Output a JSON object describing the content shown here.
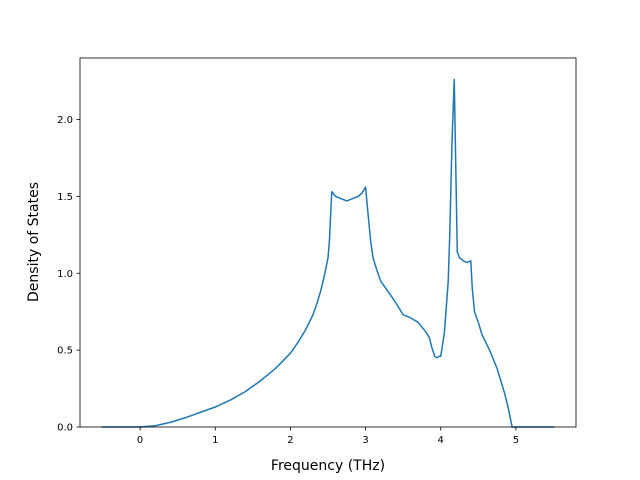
{
  "chart_data": {
    "type": "line",
    "title": "",
    "xlabel": "Frequency (THz)",
    "ylabel": "Density of States",
    "xlim": [
      -0.8,
      5.8
    ],
    "ylim": [
      0,
      2.4
    ],
    "grid": false,
    "legend": "none",
    "line_color": "#1f77b4",
    "xticks": [
      0,
      1,
      2,
      3,
      4,
      5
    ],
    "xtick_labels": [
      "0",
      "1",
      "2",
      "3",
      "4",
      "5"
    ],
    "yticks": [
      0.0,
      0.5,
      1.0,
      1.5,
      2.0
    ],
    "ytick_labels": [
      "0.0",
      "0.5",
      "1.0",
      "1.5",
      "2.0"
    ],
    "series": [
      {
        "x": [
          -0.5,
          0.0,
          0.2,
          0.4,
          0.6,
          0.8,
          1.0,
          1.2,
          1.4,
          1.6,
          1.8,
          2.0,
          2.1,
          2.2,
          2.3,
          2.35,
          2.4,
          2.45,
          2.5,
          2.52,
          2.55,
          2.6,
          2.65,
          2.7,
          2.75,
          2.8,
          2.85,
          2.9,
          2.95,
          3.0,
          3.03,
          3.07,
          3.1,
          3.15,
          3.2,
          3.3,
          3.4,
          3.5,
          3.55,
          3.6,
          3.7,
          3.75,
          3.8,
          3.85,
          3.88,
          3.92,
          3.95,
          3.98,
          4.0,
          4.02,
          4.05,
          4.1,
          4.12,
          4.15,
          4.18,
          4.2,
          4.22,
          4.25,
          4.28,
          4.3,
          4.35,
          4.4,
          4.42,
          4.45,
          4.5,
          4.55,
          4.6,
          4.65,
          4.7,
          4.75,
          4.8,
          4.85,
          4.9,
          4.95,
          5.0,
          5.5
        ],
        "y": [
          0.0,
          0.0,
          0.008,
          0.03,
          0.06,
          0.095,
          0.13,
          0.175,
          0.23,
          0.3,
          0.38,
          0.48,
          0.55,
          0.63,
          0.73,
          0.8,
          0.88,
          0.98,
          1.1,
          1.22,
          1.53,
          1.5,
          1.49,
          1.48,
          1.47,
          1.48,
          1.49,
          1.5,
          1.52,
          1.56,
          1.4,
          1.2,
          1.1,
          1.02,
          0.95,
          0.88,
          0.81,
          0.73,
          0.72,
          0.71,
          0.68,
          0.65,
          0.62,
          0.58,
          0.52,
          0.46,
          0.45,
          0.46,
          0.46,
          0.52,
          0.62,
          0.95,
          1.25,
          1.85,
          2.26,
          1.7,
          1.14,
          1.1,
          1.09,
          1.08,
          1.07,
          1.08,
          0.9,
          0.75,
          0.68,
          0.6,
          0.55,
          0.5,
          0.44,
          0.38,
          0.3,
          0.22,
          0.12,
          0.0,
          0.0,
          0.0
        ]
      }
    ]
  }
}
